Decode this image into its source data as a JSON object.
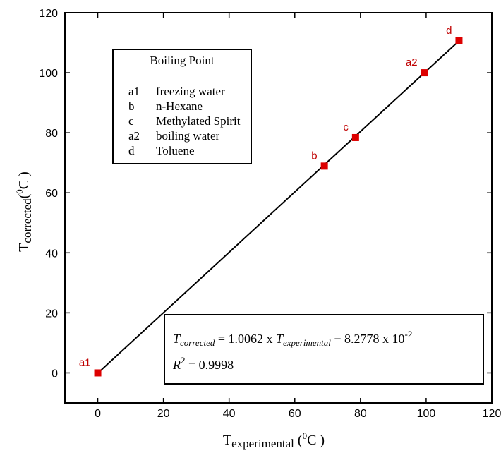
{
  "chart_data": {
    "type": "scatter",
    "xlabel": {
      "main": "T",
      "sub": "experimental",
      "open": " (",
      "sup": "0",
      "unit": "C )"
    },
    "ylabel": {
      "main": "T",
      "sub": "corrected",
      "open": "(",
      "sup": "0",
      "unit": "C )"
    },
    "xlim": [
      -10,
      120
    ],
    "ylim": [
      -10,
      120
    ],
    "xticks": [
      0,
      20,
      40,
      60,
      80,
      100,
      120
    ],
    "yticks": [
      0,
      20,
      40,
      60,
      80,
      100,
      120
    ],
    "grid": false,
    "colors": {
      "marker": "#dd0000",
      "label": "#c00000",
      "line": "#000000"
    },
    "points": [
      {
        "label": "a1",
        "x": 0,
        "y": 0
      },
      {
        "label": "b",
        "x": 69,
        "y": 68.9
      },
      {
        "label": "c",
        "x": 78.5,
        "y": 78.4
      },
      {
        "label": "a2",
        "x": 99.5,
        "y": 100
      },
      {
        "label": "d",
        "x": 110,
        "y": 110.6
      }
    ],
    "fit": {
      "slope": 1.0062,
      "intercept": -0.082778,
      "x_range": [
        -0.5,
        110.5
      ]
    },
    "legend": {
      "title": "Boiling Point",
      "position": "upper-left",
      "entries": [
        {
          "code": "a1",
          "name": "freezing water"
        },
        {
          "code": "b",
          "name": "n-Hexane"
        },
        {
          "code": "c",
          "name": "Methylated Spirit"
        },
        {
          "code": "a2",
          "name": "boiling water"
        },
        {
          "code": "d",
          "name": "Toluene"
        }
      ]
    },
    "equation": {
      "lhs_main": "T",
      "lhs_sub": "corrected",
      "eq_part1": " = 1.0062 x ",
      "rhs_main": "T",
      "rhs_sub": "experimental",
      "eq_part2": " − 8.2778 x 10",
      "exp": "-2",
      "r2_main": "R",
      "r2_sup": "2",
      "r2_rest": " = 0.9998",
      "position": "lower-right"
    }
  }
}
